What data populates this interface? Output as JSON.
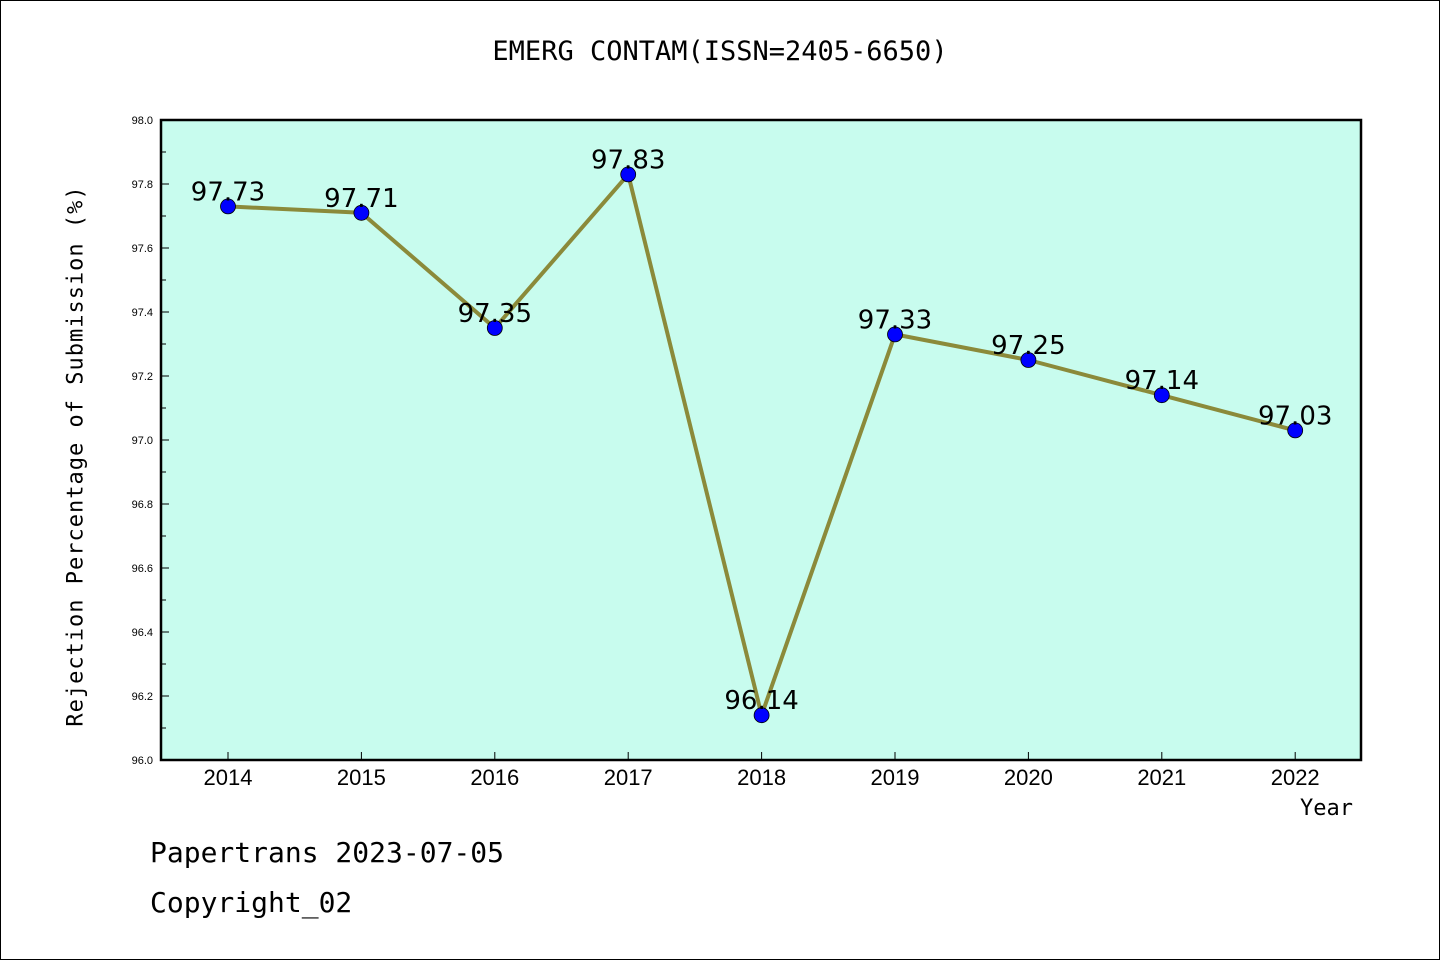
{
  "chart_data": {
    "type": "line",
    "title": "EMERG CONTAM(ISSN=2405-6650)",
    "xlabel": "Year",
    "ylabel": "Rejection Percentage of Submission (%)",
    "categories": [
      "2014",
      "2015",
      "2016",
      "2017",
      "2018",
      "2019",
      "2020",
      "2021",
      "2022"
    ],
    "values": [
      97.73,
      97.71,
      97.35,
      97.83,
      96.14,
      97.33,
      97.25,
      97.14,
      97.03
    ],
    "data_labels": [
      "97.73",
      "97.71",
      "97.35",
      "97.83",
      "96.14",
      "97.33",
      "97.25",
      "97.14",
      "97.03"
    ],
    "ylim": [
      96.0,
      98.0
    ],
    "yticks": [
      "96.0",
      "96.2",
      "96.4",
      "96.6",
      "96.8",
      "97.0",
      "97.2",
      "97.4",
      "97.6",
      "97.8",
      "98.0"
    ],
    "grid": false,
    "colors": {
      "plot_background": "#c8fcee",
      "line": "#8b8a3a",
      "marker": "#0000ff"
    }
  },
  "footer": {
    "line1": "Papertrans 2023-07-05",
    "line2": "Copyright_02"
  }
}
